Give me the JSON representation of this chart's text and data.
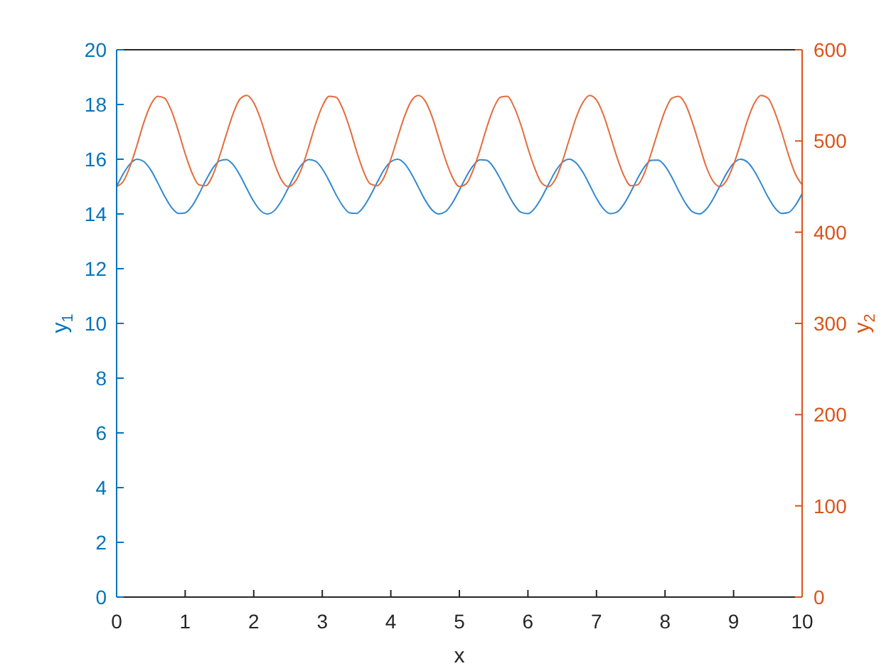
{
  "chart_data": {
    "type": "line",
    "xlabel": "x",
    "ylabel": "y$_{1}$",
    "y2label": "y$_{2}$",
    "x": [
      0,
      0.1,
      0.2,
      0.3,
      0.4,
      0.5,
      0.6,
      0.7,
      0.8,
      0.9,
      1,
      1.1,
      1.2,
      1.3,
      1.4,
      1.5,
      1.6,
      1.7,
      1.8,
      1.9,
      2,
      2.1,
      2.2,
      2.3,
      2.4,
      2.5,
      2.6,
      2.7,
      2.8,
      2.9,
      3,
      3.1,
      3.2,
      3.3,
      3.4,
      3.5,
      3.6,
      3.7,
      3.8,
      3.9,
      4,
      4.1,
      4.2,
      4.3,
      4.4,
      4.5,
      4.6,
      4.7,
      4.8,
      4.9,
      5,
      5.1,
      5.2,
      5.3,
      5.4,
      5.5,
      5.6,
      5.7,
      5.8,
      5.9,
      6,
      6.1,
      6.2,
      6.3,
      6.4,
      6.5,
      6.6,
      6.7,
      6.8,
      6.9,
      7,
      7.1,
      7.2,
      7.3,
      7.4,
      7.5,
      7.6,
      7.7,
      7.8,
      7.9,
      8,
      8.1,
      8.2,
      8.3,
      8.4,
      8.5,
      8.6,
      8.7,
      8.8,
      8.9,
      9,
      9.1,
      9.2,
      9.3,
      9.4,
      9.5,
      9.6,
      9.7,
      9.8,
      9.9,
      10
    ],
    "series": [
      {
        "color": "#3389cf",
        "values": [
          15.0,
          15.48,
          15.84,
          16.0,
          15.91,
          15.6,
          15.14,
          14.65,
          14.24,
          14.02,
          14.04,
          14.29,
          14.72,
          15.22,
          15.66,
          15.94,
          15.99,
          15.8,
          15.41,
          14.92,
          14.46,
          14.12,
          14.0,
          14.12,
          14.46,
          14.93,
          15.42,
          15.8,
          15.99,
          15.93,
          15.65,
          15.21,
          14.71,
          14.29,
          14.04,
          14.02,
          14.25,
          14.66,
          15.15,
          15.61,
          15.91,
          16.0,
          15.84,
          15.47,
          14.99,
          14.51,
          14.15,
          14.0,
          14.09,
          14.41,
          14.87,
          15.36,
          15.76,
          15.98,
          15.96,
          15.7,
          15.27,
          14.78,
          14.34,
          14.06,
          14.01,
          14.21,
          14.6,
          15.08,
          15.55,
          15.88,
          16.0,
          15.87,
          15.53,
          15.06,
          14.57,
          14.19,
          14.01,
          14.07,
          14.36,
          14.8,
          15.3,
          15.72,
          15.96,
          15.97,
          15.75,
          15.34,
          14.84,
          14.39,
          14.08,
          14.0,
          14.17,
          14.54,
          15.02,
          15.49,
          15.85,
          16.0,
          15.9,
          15.58,
          15.12,
          14.63,
          14.23,
          14.02,
          14.05,
          14.31,
          14.74
        ]
      },
      {
        "color": "#e56b3c",
        "axis": "y2",
        "values": [
          450,
          456,
          473,
          496,
          521,
          540,
          549,
          547,
          533,
          511,
          486,
          465,
          452,
          451,
          462,
          483,
          507,
          530,
          546,
          550,
          542,
          524,
          500,
          476,
          458,
          450,
          455,
          470,
          493,
          518,
          538,
          549,
          548,
          535,
          514,
          489,
          467,
          453,
          451,
          460,
          480,
          504,
          527,
          544,
          550,
          544,
          527,
          503,
          479,
          460,
          450,
          453,
          468,
          490,
          515,
          536,
          548,
          549,
          537,
          517,
          492,
          470,
          454,
          450,
          458,
          477,
          501,
          525,
          542,
          550,
          545,
          529,
          506,
          482,
          462,
          451,
          452,
          465,
          487,
          511,
          533,
          547,
          549,
          540,
          520,
          496,
          472,
          456,
          450,
          457,
          474,
          497,
          522,
          541,
          550,
          547,
          532,
          510,
          485,
          464,
          452
        ]
      }
    ],
    "xlim": [
      0,
      10
    ],
    "xticks": [
      0,
      1,
      2,
      3,
      4,
      5,
      6,
      7,
      8,
      9,
      10
    ],
    "ylim": [
      0,
      20
    ],
    "yticks": [
      0,
      2,
      4,
      6,
      8,
      10,
      12,
      14,
      16,
      18,
      20
    ],
    "y2lim": [
      0,
      600
    ],
    "y2ticks": [
      0,
      100,
      200,
      300,
      400,
      500,
      600
    ],
    "marker": "none",
    "line_style": "solid"
  }
}
